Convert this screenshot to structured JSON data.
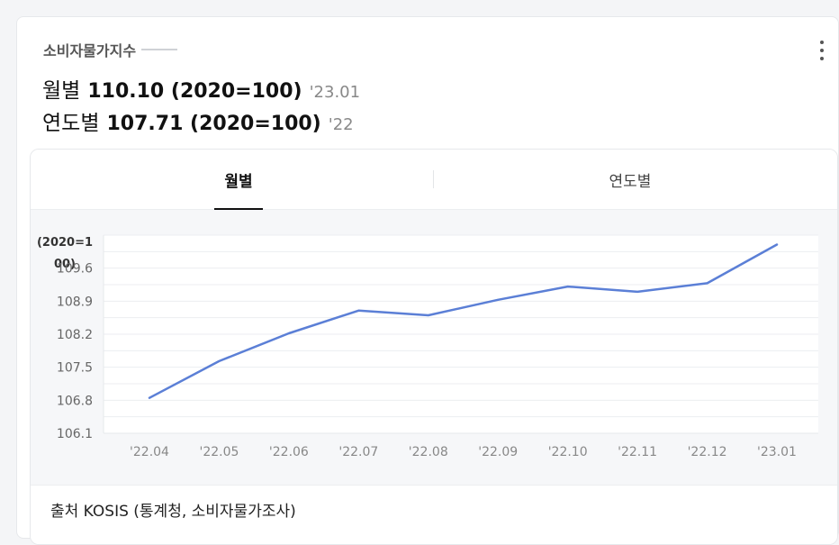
{
  "header": {
    "title": "소비자물가지수",
    "monthly_label": "월별",
    "monthly_value": "110.10 (2020=100)",
    "monthly_period": "'23.01",
    "yearly_label": "연도별",
    "yearly_value": "107.71 (2020=100)",
    "yearly_period": "'22"
  },
  "tabs": [
    {
      "label": "월별",
      "active": true
    },
    {
      "label": "연도별",
      "active": false
    }
  ],
  "source": {
    "text": "출처 KOSIS (통계청, 소비자물가조사)"
  },
  "colors": {
    "line": "#5b7fd6",
    "active_tab_underline": "#111111"
  },
  "chart_data": {
    "type": "line",
    "ylabel": "(2020=100)",
    "ylabel_lines": [
      "(2020=1",
      "00)"
    ],
    "x": [
      "'22.04",
      "'22.05",
      "'22.06",
      "'22.07",
      "'22.08",
      "'22.09",
      "'22.10",
      "'22.11",
      "'22.12",
      "'23.01"
    ],
    "series": [
      {
        "values": [
          106.85,
          107.63,
          108.22,
          108.7,
          108.6,
          108.93,
          109.21,
          109.1,
          109.28,
          110.1
        ]
      }
    ],
    "yticks": [
      "106.1",
      "106.8",
      "107.5",
      "108.2",
      "108.9",
      "109.6"
    ],
    "ylim": [
      106.1,
      110.3
    ],
    "grid": true
  }
}
